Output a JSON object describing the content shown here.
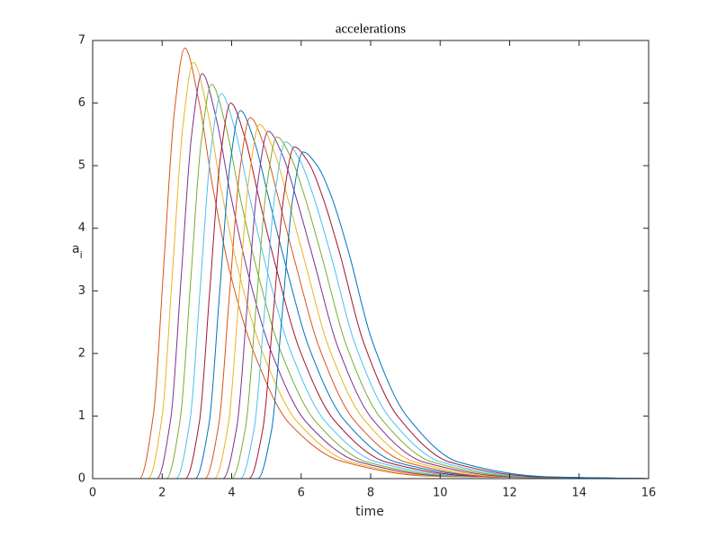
{
  "chart_data": {
    "type": "line",
    "title": "accelerations",
    "xlabel": "time",
    "ylabel": "a",
    "ylabel_subscript": "i",
    "xlim": [
      0,
      16
    ],
    "xticks": [
      0,
      2,
      4,
      6,
      8,
      10,
      12,
      14,
      16
    ],
    "ylim": [
      0,
      7
    ],
    "yticks": [
      0,
      1,
      2,
      3,
      4,
      5,
      6,
      7
    ],
    "series": [
      {
        "color": "#0072BD",
        "x": [
          0,
          16
        ],
        "values": [
          0,
          0
        ]
      },
      {
        "color": "#D95319",
        "x": [
          0,
          1.35,
          1.75,
          2.05,
          2.35,
          2.65,
          3.05,
          3.45,
          3.95,
          4.65,
          5.65,
          7.15,
          9.65,
          16
        ],
        "values": [
          0,
          0,
          1.03,
          3.44,
          5.85,
          6.88,
          6.05,
          4.68,
          3.3,
          2.0,
          0.89,
          0.28,
          0.04,
          0
        ]
      },
      {
        "color": "#EDB120",
        "x": [
          0,
          1.6,
          2.0,
          2.3,
          2.6,
          2.9,
          3.3,
          3.7,
          4.2,
          4.9,
          5.9,
          7.4,
          9.9,
          16
        ],
        "values": [
          0,
          0,
          1.0,
          3.33,
          5.65,
          6.65,
          5.89,
          4.62,
          3.31,
          2.0,
          0.9,
          0.27,
          0.04,
          0
        ]
      },
      {
        "color": "#7E2F8E",
        "x": [
          0,
          1.85,
          2.25,
          2.55,
          2.85,
          3.15,
          3.55,
          3.95,
          4.45,
          5.15,
          6.15,
          7.65,
          10.15,
          16
        ],
        "values": [
          0,
          0,
          0.97,
          3.24,
          5.5,
          6.47,
          5.77,
          4.59,
          3.33,
          2.01,
          0.9,
          0.27,
          0.04,
          0
        ]
      },
      {
        "color": "#77AC30",
        "x": [
          0,
          2.12,
          2.52,
          2.82,
          3.12,
          3.42,
          3.82,
          4.22,
          4.72,
          5.42,
          6.42,
          7.92,
          10.42,
          16
        ],
        "values": [
          0,
          0,
          0.95,
          3.15,
          5.36,
          6.3,
          5.66,
          4.56,
          3.35,
          2.02,
          0.91,
          0.26,
          0.04,
          0
        ]
      },
      {
        "color": "#4DBEEE",
        "x": [
          0,
          2.4,
          2.8,
          3.1,
          3.4,
          3.7,
          4.1,
          4.5,
          5.0,
          5.7,
          6.7,
          8.2,
          10.7,
          16
        ],
        "values": [
          0,
          0,
          0.92,
          3.08,
          5.23,
          6.15,
          5.57,
          4.54,
          3.37,
          2.03,
          0.91,
          0.26,
          0.04,
          0
        ]
      },
      {
        "color": "#A2142F",
        "x": [
          0,
          2.67,
          3.07,
          3.37,
          3.67,
          3.97,
          4.37,
          4.77,
          5.27,
          5.97,
          6.97,
          8.47,
          10.97,
          16
        ],
        "values": [
          0,
          0,
          0.9,
          3.0,
          5.1,
          6.0,
          5.47,
          4.52,
          3.39,
          2.04,
          0.92,
          0.26,
          0.04,
          0
        ]
      },
      {
        "color": "#0072BD",
        "x": [
          0,
          2.95,
          3.35,
          3.65,
          3.95,
          4.25,
          4.65,
          5.05,
          5.55,
          6.25,
          7.25,
          8.75,
          11.25,
          16
        ],
        "values": [
          0,
          0,
          0.88,
          2.94,
          5.0,
          5.88,
          5.39,
          4.52,
          3.42,
          2.06,
          0.93,
          0.26,
          0.04,
          0
        ]
      },
      {
        "color": "#D95319",
        "x": [
          0,
          3.23,
          3.63,
          3.93,
          4.23,
          4.53,
          4.93,
          5.33,
          5.83,
          6.53,
          7.53,
          9.03,
          11.53,
          16
        ],
        "values": [
          0,
          0,
          0.87,
          2.89,
          4.9,
          5.77,
          5.33,
          4.51,
          3.45,
          2.08,
          0.93,
          0.26,
          0.03,
          0
        ]
      },
      {
        "color": "#EDB120",
        "x": [
          0,
          3.5,
          3.9,
          4.2,
          4.5,
          4.8,
          5.2,
          5.6,
          6.1,
          6.8,
          7.8,
          9.3,
          11.8,
          16
        ],
        "values": [
          0,
          0,
          0.85,
          2.83,
          4.81,
          5.66,
          5.26,
          4.51,
          3.48,
          2.09,
          0.95,
          0.26,
          0.03,
          0
        ]
      },
      {
        "color": "#7E2F8E",
        "x": [
          0,
          3.75,
          4.15,
          4.45,
          4.75,
          5.05,
          5.45,
          5.85,
          6.35,
          7.05,
          8.05,
          9.55,
          12.05,
          16
        ],
        "values": [
          0,
          0,
          0.83,
          2.78,
          4.72,
          5.55,
          5.19,
          4.5,
          3.51,
          2.11,
          0.95,
          0.26,
          0.03,
          0
        ]
      },
      {
        "color": "#77AC30",
        "x": [
          0,
          4.0,
          4.4,
          4.7,
          5.0,
          5.3,
          5.7,
          6.1,
          6.6,
          7.3,
          8.3,
          9.8,
          12.3,
          16
        ],
        "values": [
          0,
          0,
          0.82,
          2.73,
          4.64,
          5.46,
          5.14,
          4.51,
          3.54,
          2.13,
          0.96,
          0.26,
          0.03,
          0
        ]
      },
      {
        "color": "#4DBEEE",
        "x": [
          0,
          4.25,
          4.65,
          4.95,
          5.25,
          5.55,
          5.95,
          6.35,
          6.85,
          7.55,
          8.55,
          10.05,
          12.55,
          16
        ],
        "values": [
          0,
          0,
          0.81,
          2.69,
          4.57,
          5.38,
          5.1,
          4.52,
          3.58,
          2.15,
          0.97,
          0.26,
          0.03,
          0
        ]
      },
      {
        "color": "#A2142F",
        "x": [
          0,
          4.5,
          4.9,
          5.2,
          5.5,
          5.8,
          6.2,
          6.6,
          7.1,
          7.8,
          8.8,
          10.3,
          12.8,
          16
        ],
        "values": [
          0,
          0,
          0.8,
          2.65,
          4.51,
          5.3,
          5.06,
          4.53,
          3.62,
          2.17,
          0.98,
          0.26,
          0.03,
          0
        ]
      },
      {
        "color": "#0072BD",
        "x": [
          0,
          4.75,
          5.15,
          5.45,
          5.75,
          6.05,
          6.45,
          6.85,
          7.35,
          8.05,
          9.05,
          10.55,
          13.05,
          16
        ],
        "values": [
          0,
          0,
          0.78,
          2.61,
          4.44,
          5.22,
          5.01,
          4.54,
          3.65,
          2.19,
          0.99,
          0.26,
          0.03,
          0
        ]
      }
    ]
  }
}
